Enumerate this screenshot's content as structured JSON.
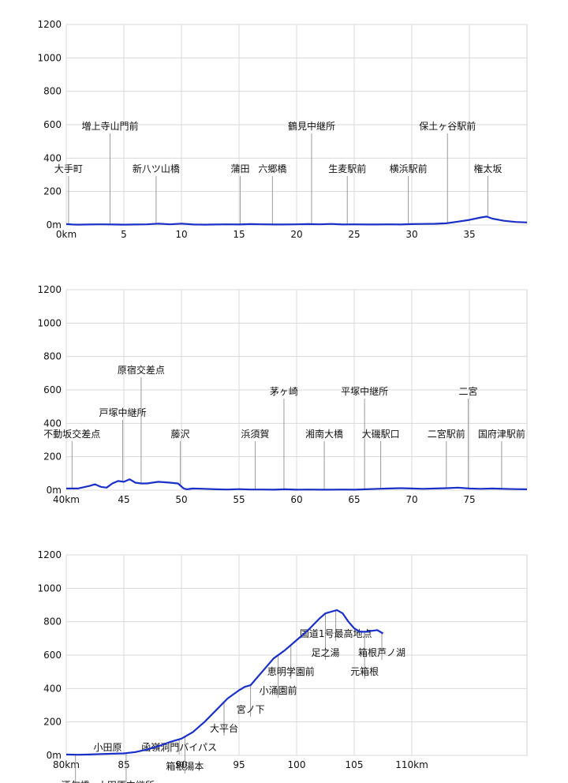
{
  "chart_data": [
    {
      "type": "line",
      "title": "",
      "xlabel": "",
      "ylabel": "",
      "xlim": [
        0,
        40
      ],
      "ylim": [
        0,
        1200
      ],
      "x_ticks": [
        "0km",
        "5",
        "10",
        "15",
        "20",
        "25",
        "30",
        "35"
      ],
      "x_tick_values": [
        0,
        5,
        10,
        15,
        20,
        25,
        30,
        35
      ],
      "y_ticks": [
        "0m",
        "200",
        "400",
        "600",
        "800",
        "1000",
        "1200"
      ],
      "y_tick_values": [
        0,
        200,
        400,
        600,
        800,
        1000,
        1200
      ],
      "grid": true,
      "color": "#1a2fc8",
      "series": [
        {
          "x": [
            0,
            0.5,
            1,
            2,
            3,
            4,
            5,
            6,
            7,
            8,
            9,
            10,
            11,
            12,
            13,
            14,
            15,
            16,
            17,
            18,
            19,
            20,
            21,
            22,
            23,
            24,
            25,
            26,
            27,
            28,
            29,
            30,
            31,
            32,
            33,
            34,
            35,
            36,
            36.5,
            37,
            38,
            39,
            40
          ],
          "y": [
            5,
            3,
            2,
            3,
            4,
            3,
            2,
            3,
            4,
            8,
            4,
            8,
            3,
            2,
            3,
            4,
            3,
            5,
            4,
            3,
            3,
            4,
            5,
            4,
            6,
            3,
            4,
            3,
            3,
            4,
            3,
            5,
            6,
            7,
            10,
            20,
            30,
            45,
            50,
            38,
            25,
            18,
            15
          ]
        }
      ],
      "annotations": [
        {
          "label": "大手町",
          "x": 0.2,
          "level": 4
        },
        {
          "label": "増上寺山門前",
          "x": 3.8,
          "level": 2
        },
        {
          "label": "新八ツ山橋",
          "x": 7.8,
          "level": 4
        },
        {
          "label": "蒲田",
          "x": 15.1,
          "level": 4
        },
        {
          "label": "六郷橋",
          "x": 17.9,
          "level": 4
        },
        {
          "label": "鶴見中継所",
          "x": 21.3,
          "level": 2
        },
        {
          "label": "生麦駅前",
          "x": 24.4,
          "level": 4
        },
        {
          "label": "横浜駅前",
          "x": 29.7,
          "level": 4
        },
        {
          "label": "保土ヶ谷駅前",
          "x": 33.1,
          "level": 2
        },
        {
          "label": "権太坂",
          "x": 36.6,
          "level": 4
        }
      ]
    },
    {
      "type": "line",
      "title": "",
      "xlabel": "",
      "ylabel": "",
      "xlim": [
        40,
        80
      ],
      "ylim": [
        0,
        1200
      ],
      "x_ticks": [
        "40km",
        "45",
        "50",
        "55",
        "60",
        "65",
        "70",
        "75"
      ],
      "x_tick_values": [
        40,
        45,
        50,
        55,
        60,
        65,
        70,
        75
      ],
      "y_ticks": [
        "0m",
        "200",
        "400",
        "600",
        "800",
        "1000",
        "1200"
      ],
      "y_tick_values": [
        0,
        200,
        400,
        600,
        800,
        1000,
        1200
      ],
      "grid": true,
      "color": "#1a2fc8",
      "series": [
        {
          "x": [
            40,
            41,
            42,
            42.5,
            43,
            43.5,
            44,
            44.5,
            45,
            45.5,
            46,
            46.5,
            47,
            48,
            49,
            49.7,
            50.2,
            50.5,
            51,
            52,
            53,
            54,
            55,
            56,
            57,
            58,
            59,
            60,
            61,
            62,
            63,
            64,
            65,
            66,
            67,
            68,
            69,
            70,
            71,
            72,
            73,
            74,
            75,
            76,
            77,
            78,
            79,
            80
          ],
          "y": [
            10,
            10,
            25,
            35,
            20,
            15,
            40,
            55,
            50,
            65,
            45,
            40,
            40,
            50,
            45,
            40,
            10,
            5,
            10,
            8,
            5,
            4,
            6,
            4,
            4,
            3,
            5,
            3,
            4,
            3,
            3,
            4,
            3,
            5,
            8,
            10,
            12,
            10,
            8,
            10,
            12,
            15,
            10,
            8,
            10,
            8,
            6,
            5
          ]
        }
      ],
      "annotations": [
        {
          "label": "不動坂交差点",
          "x": 40.5,
          "level": 4
        },
        {
          "label": "戸塚中継所",
          "x": 44.9,
          "level": 3
        },
        {
          "label": "原宿交差点",
          "x": 46.5,
          "level": 1
        },
        {
          "label": "藤沢",
          "x": 49.9,
          "level": 4
        },
        {
          "label": "浜須賀",
          "x": 56.4,
          "level": 4
        },
        {
          "label": "茅ヶ崎",
          "x": 58.9,
          "level": 2
        },
        {
          "label": "湘南大橋",
          "x": 62.4,
          "level": 4
        },
        {
          "label": "平塚中継所",
          "x": 65.9,
          "level": 2
        },
        {
          "label": "大磯駅口",
          "x": 67.3,
          "level": 4
        },
        {
          "label": "二宮駅前",
          "x": 73.0,
          "level": 4
        },
        {
          "label": "二宮",
          "x": 74.9,
          "level": 2
        },
        {
          "label": "国府津駅前",
          "x": 77.8,
          "level": 4
        }
      ]
    },
    {
      "type": "line",
      "title": "",
      "xlabel": "",
      "ylabel": "",
      "xlim": [
        80,
        120
      ],
      "ylim": [
        0,
        1200
      ],
      "x_ticks": [
        "80km",
        "85",
        "90",
        "95",
        "100",
        "105",
        "110km"
      ],
      "x_tick_values": [
        80,
        85,
        90,
        95,
        100,
        105,
        110
      ],
      "y_ticks": [
        "0m",
        "200",
        "400",
        "600",
        "800",
        "1000",
        "1200"
      ],
      "y_tick_values": [
        0,
        200,
        400,
        600,
        800,
        1000,
        1200
      ],
      "grid": true,
      "color": "#1a2fc8",
      "series": [
        {
          "x": [
            80,
            81,
            82,
            83,
            84,
            85,
            86,
            87,
            88,
            89,
            90,
            91,
            92,
            93,
            94,
            95,
            95.5,
            96,
            97,
            98,
            99,
            100,
            101,
            102,
            102.5,
            103,
            103.5,
            104,
            104.5,
            105,
            105.5,
            106,
            106.5,
            107,
            107.5
          ],
          "y": [
            5,
            4,
            5,
            8,
            10,
            12,
            20,
            35,
            55,
            80,
            100,
            140,
            200,
            270,
            340,
            390,
            410,
            420,
            500,
            580,
            630,
            690,
            750,
            820,
            850,
            860,
            870,
            850,
            800,
            760,
            740,
            740,
            745,
            750,
            730
          ]
        }
      ],
      "annotations": [
        {
          "label": "酒匂橋",
          "x": 80.8,
          "level": 4
        },
        {
          "label": "小田原",
          "x": 83.6,
          "level": 2
        },
        {
          "label": "小田原中継所",
          "x": 85.2,
          "level": 4
        },
        {
          "label": "箱根湯本",
          "x": 90.3,
          "level": 3
        },
        {
          "label": "函嶺洞門バイパス",
          "x": 89.8,
          "level": 2
        },
        {
          "label": "大平台",
          "x": 93.7,
          "level": 1
        },
        {
          "label": "宮ノ下",
          "x": 96.0,
          "level": 0
        },
        {
          "label": "小涌園前",
          "x": 98.4,
          "level": -1
        },
        {
          "label": "恵明学園前",
          "x": 99.5,
          "level": -2
        },
        {
          "label": "足之湯",
          "x": 102.5,
          "level": -3
        },
        {
          "label": "国道1号最高地点",
          "x": 103.4,
          "level": -4
        },
        {
          "label": "元箱根",
          "x": 105.9,
          "level": -2
        },
        {
          "label": "箱根芦ノ湖",
          "x": 107.4,
          "level": -3
        }
      ]
    }
  ]
}
